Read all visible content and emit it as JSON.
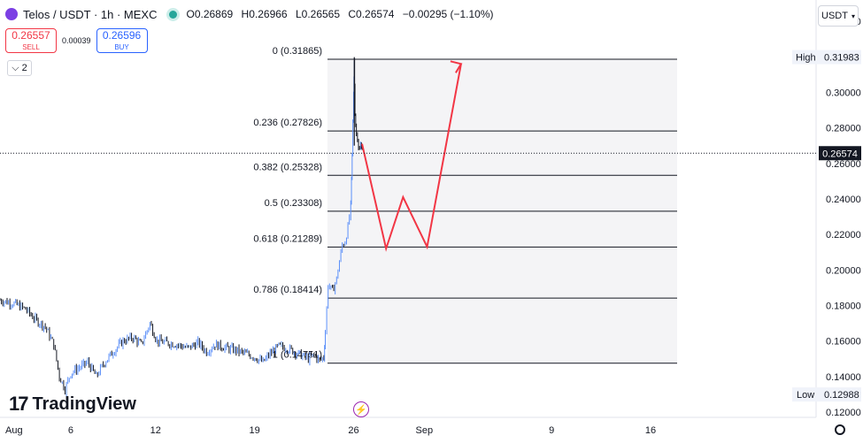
{
  "header": {
    "symbol": "Telos / USDT · 1h · MEXC",
    "open_label": "O",
    "open": "0.26869",
    "high_label": "H",
    "high": "0.26966",
    "low_label": "L",
    "low": "0.26565",
    "close_label": "C",
    "close": "0.26574",
    "change": "−0.00295 (−1.10%)"
  },
  "trade": {
    "sell_price": "0.26557",
    "sell_label": "SELL",
    "spread": "0.00039",
    "buy_price": "0.26596",
    "buy_label": "BUY"
  },
  "indicators_toggle": "2",
  "currency": "USDT",
  "watermark": "TradingView",
  "colors": {
    "up": "#26a69a",
    "down": "#131722",
    "forecast": "#f23645",
    "fib": "#131722",
    "price_label": "#131722",
    "volume_trace": "#2962ff"
  },
  "chart_data": {
    "type": "candlestick",
    "ylim": [
      0.117,
      0.352
    ],
    "yticks": [
      "0.34000",
      "0.32000",
      "0.30000",
      "0.28000",
      "0.26000",
      "0.24000",
      "0.22000",
      "0.20000",
      "0.18000",
      "0.16000",
      "0.14000",
      "0.12000"
    ],
    "yticks_values": [
      0.34,
      0.32,
      0.3,
      0.28,
      0.26,
      0.24,
      0.22,
      0.2,
      0.18,
      0.16,
      0.14,
      0.12
    ],
    "xlim_days": [
      1,
      21.5
    ],
    "xticks": [
      {
        "label": "Aug",
        "day": 1
      },
      {
        "label": "6",
        "day": 6
      },
      {
        "label": "12",
        "day": 12
      },
      {
        "label": "19",
        "day": 19
      },
      {
        "label": "26",
        "day": 26
      },
      {
        "label": "Sep",
        "day": 31
      },
      {
        "label": "9",
        "day": 40
      },
      {
        "label": "16",
        "day": 47
      }
    ],
    "price_path": [
      [
        1,
        0.183
      ],
      [
        2,
        0.181
      ],
      [
        2.8,
        0.178
      ],
      [
        3.5,
        0.172
      ],
      [
        4.2,
        0.168
      ],
      [
        4.8,
        0.158
      ],
      [
        5.2,
        0.14
      ],
      [
        5.6,
        0.133
      ],
      [
        6,
        0.142
      ],
      [
        6.6,
        0.145
      ],
      [
        7.2,
        0.148
      ],
      [
        7.8,
        0.14
      ],
      [
        8.4,
        0.148
      ],
      [
        9,
        0.154
      ],
      [
        9.7,
        0.16
      ],
      [
        10.4,
        0.162
      ],
      [
        11,
        0.158
      ],
      [
        11.6,
        0.17
      ],
      [
        12.1,
        0.16
      ],
      [
        12.8,
        0.159
      ],
      [
        13.5,
        0.158
      ],
      [
        14.3,
        0.156
      ],
      [
        15,
        0.159
      ],
      [
        15.6,
        0.154
      ],
      [
        16.2,
        0.158
      ],
      [
        17,
        0.156
      ],
      [
        17.6,
        0.155
      ],
      [
        18.3,
        0.153
      ],
      [
        19,
        0.151
      ],
      [
        19.6,
        0.148
      ],
      [
        20,
        0.152
      ],
      [
        20.7,
        0.157
      ],
      [
        21.3,
        0.156
      ],
      [
        21.8,
        0.154
      ],
      [
        22.3,
        0.152
      ],
      [
        22.8,
        0.15
      ],
      [
        23.2,
        0.152
      ],
      [
        23.6,
        0.149
      ],
      [
        23.9,
        0.151
      ],
      [
        24.0,
        0.165
      ],
      [
        24.2,
        0.192
      ],
      [
        24.5,
        0.188
      ],
      [
        24.8,
        0.195
      ],
      [
        25.0,
        0.205
      ],
      [
        25.2,
        0.214
      ],
      [
        25.4,
        0.216
      ],
      [
        25.6,
        0.224
      ],
      [
        25.8,
        0.236
      ],
      [
        25.9,
        0.265
      ],
      [
        26.0,
        0.3
      ],
      [
        26.05,
        0.318
      ],
      [
        26.1,
        0.29
      ],
      [
        26.2,
        0.275
      ],
      [
        26.35,
        0.268
      ],
      [
        26.5,
        0.272
      ],
      [
        26.6,
        0.266
      ]
    ],
    "fibonacci": [
      {
        "label": "0 (0.31865)",
        "value": 0.31865
      },
      {
        "label": "0.236 (0.27826)",
        "value": 0.27826
      },
      {
        "label": "0.382 (0.25328)",
        "value": 0.25328
      },
      {
        "label": "0.5 (0.23308)",
        "value": 0.23308
      },
      {
        "label": "0.618 (0.21289)",
        "value": 0.21289
      },
      {
        "label": "0.786 (0.18414)",
        "value": 0.18414
      },
      {
        "label": "1 (0.14751)",
        "value": 0.14751
      }
    ],
    "fib_day_range": [
      24.0,
      49.0
    ],
    "forecast_path": [
      [
        26.6,
        0.271
      ],
      [
        28.3,
        0.212
      ],
      [
        29.5,
        0.241
      ],
      [
        31.2,
        0.213
      ],
      [
        33.6,
        0.316
      ]
    ],
    "current_price": {
      "label": "0.26574",
      "value": 0.26574
    },
    "high_marker": {
      "tag": "High",
      "label": "0.31983",
      "value": 0.31983
    },
    "low_marker": {
      "tag": "Low",
      "label": "0.12988",
      "value": 0.12988
    }
  }
}
